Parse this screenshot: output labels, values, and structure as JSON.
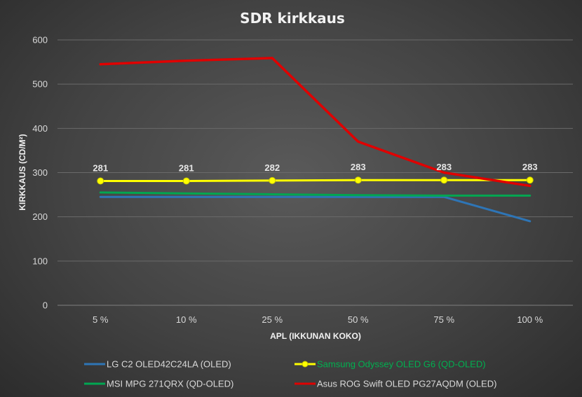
{
  "chart_data": {
    "type": "line",
    "title": "SDR kirkkaus",
    "xlabel": "APL (IKKUNAN KOKO)",
    "ylabel": "KIRKKAUS (CD/M²)",
    "categories": [
      "5 %",
      "10 %",
      "25 %",
      "50 %",
      "75 %",
      "100 %"
    ],
    "ylim": [
      0,
      600
    ],
    "yticks": [
      "0",
      "100",
      "200",
      "300",
      "400",
      "500",
      "600"
    ],
    "grid": true,
    "legend_position": "bottom",
    "series": [
      {
        "name": "LG C2 OLED42C24LA (OLED)",
        "color": "#2e75b6",
        "values": [
          245,
          245,
          245,
          245,
          245,
          190
        ],
        "markers": false
      },
      {
        "name": "Samsung Odyssey OLED G6 (QD-OLED)",
        "color": "#ffff00",
        "legend_text_color": "#00b050",
        "values": [
          281,
          281,
          282,
          283,
          283,
          283
        ],
        "markers": true,
        "data_labels": [
          "281",
          "281",
          "282",
          "283",
          "283",
          "283"
        ]
      },
      {
        "name": "MSI MPG 271QRX (QD-OLED)",
        "color": "#00a651",
        "values": [
          255,
          253,
          251,
          249,
          248,
          248
        ],
        "markers": false
      },
      {
        "name": "Asus ROG Swift OLED PG27AQDM (OLED)",
        "color": "#e00000",
        "values": [
          545,
          553,
          559,
          370,
          300,
          270
        ],
        "markers": false
      }
    ]
  }
}
